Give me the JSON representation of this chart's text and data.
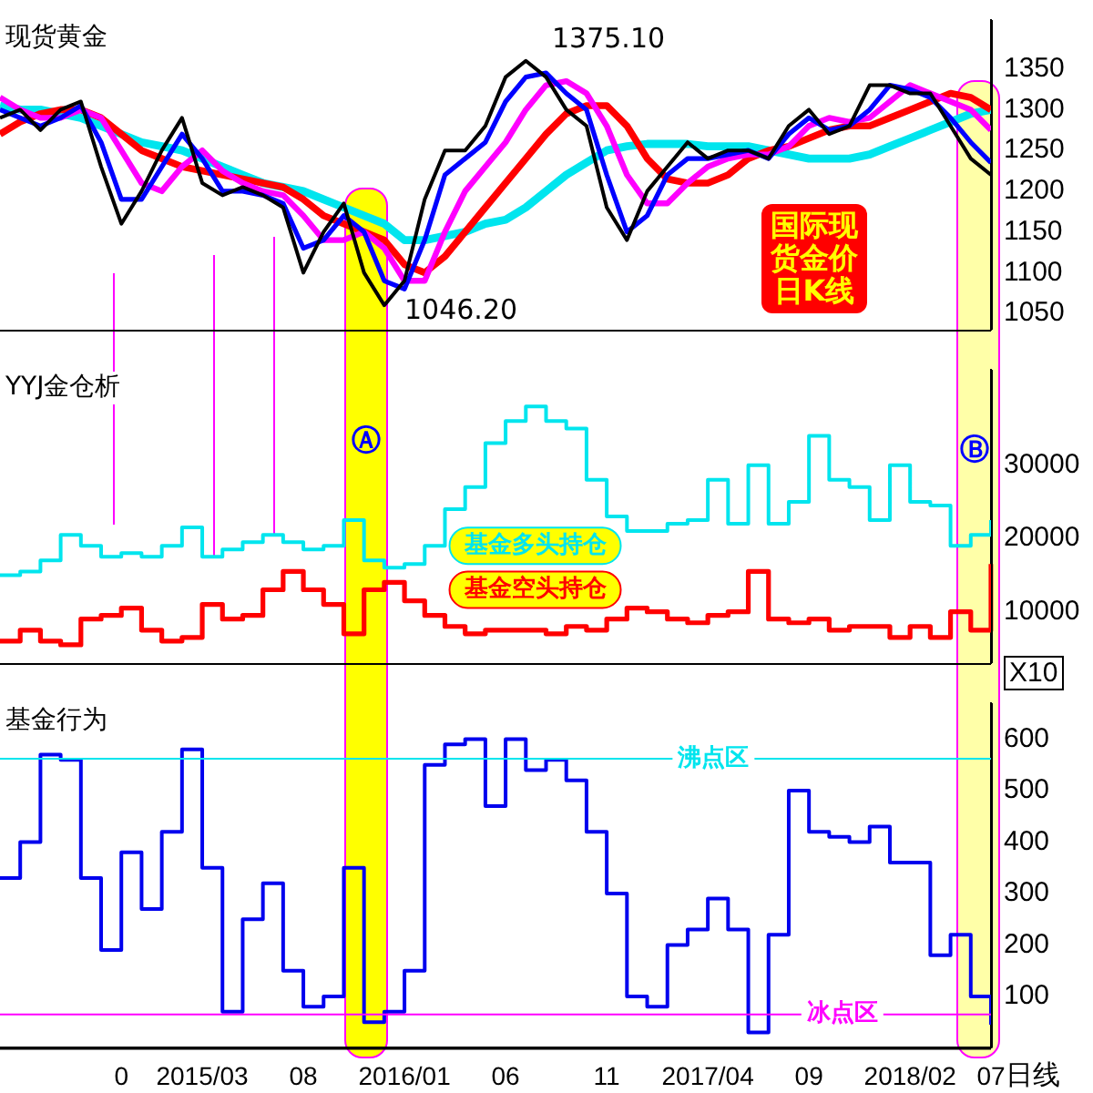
{
  "chart_data": [
    {
      "type": "line",
      "title": "现货黄金",
      "categories": [
        null,
        null,
        null,
        null,
        null,
        null,
        null,
        null,
        null,
        null,
        null,
        null,
        null,
        null,
        null,
        null,
        null,
        null,
        null,
        null,
        null,
        null,
        null,
        null,
        null,
        null,
        null,
        null,
        null,
        null,
        null,
        null,
        null,
        null,
        null,
        null,
        null,
        null,
        null,
        null,
        null,
        null,
        null,
        null,
        null,
        null,
        null,
        null,
        null,
        null
      ],
      "series": [
        {
          "color": "#000000",
          "values": [
            1290,
            1300,
            1275,
            1300,
            1310,
            1230,
            1160,
            1200,
            1250,
            1290,
            1210,
            1195,
            1205,
            1195,
            1180,
            1100,
            1150,
            1185,
            1100,
            1060,
            1090,
            1190,
            1250,
            1250,
            1280,
            1340,
            1360,
            1340,
            1300,
            1280,
            1180,
            1140,
            1200,
            1230,
            1260,
            1240,
            1250,
            1250,
            1240,
            1280,
            1300,
            1270,
            1280,
            1330,
            1330,
            1320,
            1320,
            1280,
            1240,
            1220
          ]
        },
        {
          "color": "#0000ff",
          "values": [
            1300,
            1290,
            1280,
            1290,
            1305,
            1260,
            1190,
            1190,
            1230,
            1270,
            1240,
            1200,
            1200,
            1195,
            1185,
            1130,
            1140,
            1170,
            1150,
            1090,
            1080,
            1140,
            1220,
            1240,
            1260,
            1310,
            1340,
            1345,
            1320,
            1300,
            1220,
            1150,
            1170,
            1220,
            1240,
            1240,
            1245,
            1250,
            1240,
            1270,
            1290,
            1275,
            1280,
            1300,
            1330,
            1325,
            1315,
            1290,
            1260,
            1235
          ]
        },
        {
          "color": "#ff00ff",
          "values": [
            1315,
            1300,
            1290,
            1290,
            1300,
            1290,
            1250,
            1210,
            1200,
            1230,
            1250,
            1225,
            1210,
            1200,
            1195,
            1170,
            1140,
            1140,
            1150,
            1130,
            1090,
            1090,
            1150,
            1200,
            1230,
            1260,
            1300,
            1330,
            1335,
            1320,
            1280,
            1220,
            1185,
            1185,
            1210,
            1230,
            1240,
            1245,
            1245,
            1255,
            1280,
            1290,
            1285,
            1290,
            1310,
            1330,
            1320,
            1310,
            1300,
            1275
          ]
        },
        {
          "color": "#ff0000",
          "values": [
            1270,
            1285,
            1295,
            1300,
            1300,
            1290,
            1270,
            1250,
            1240,
            1230,
            1225,
            1220,
            1215,
            1210,
            1205,
            1190,
            1170,
            1160,
            1150,
            1140,
            1110,
            1100,
            1120,
            1150,
            1180,
            1210,
            1240,
            1270,
            1295,
            1305,
            1305,
            1280,
            1240,
            1215,
            1210,
            1210,
            1220,
            1240,
            1250,
            1255,
            1265,
            1275,
            1280,
            1280,
            1290,
            1300,
            1310,
            1320,
            1315,
            1300
          ]
        },
        {
          "color": "#00e5ee",
          "values": [
            1305,
            1300,
            1300,
            1295,
            1290,
            1280,
            1270,
            1260,
            1255,
            1250,
            1240,
            1230,
            1220,
            1210,
            1205,
            1200,
            1190,
            1180,
            1170,
            1160,
            1140,
            1140,
            1145,
            1150,
            1160,
            1165,
            1180,
            1200,
            1220,
            1235,
            1250,
            1255,
            1258,
            1258,
            1258,
            1255,
            1255,
            1255,
            1250,
            1245,
            1240,
            1240,
            1240,
            1245,
            1255,
            1265,
            1275,
            1285,
            1295,
            1300
          ]
        }
      ],
      "ylim": [
        1030,
        1410
      ],
      "yticks": [
        1050,
        1100,
        1150,
        1200,
        1250,
        1300,
        1350
      ],
      "tick_labels": "y",
      "annotations": [
        "1375.10",
        "1046.20",
        "国际现货金价日K线"
      ]
    },
    {
      "type": "step",
      "title": "YYJ金仓析",
      "categories": [
        null,
        null,
        null,
        null,
        null,
        null,
        null,
        null,
        null,
        null,
        null,
        null,
        null,
        null,
        null,
        null,
        null,
        null,
        null,
        null,
        null,
        null,
        null,
        null,
        null,
        null,
        null,
        null,
        null,
        null,
        null,
        null,
        null,
        null,
        null,
        null,
        null,
        null,
        null,
        null,
        null,
        null,
        null,
        null,
        null,
        null,
        null,
        null,
        null,
        null
      ],
      "series": [
        {
          "name": "基金多头持仓",
          "color": "#00e5ee",
          "values": [
            15000,
            15500,
            17000,
            20500,
            19000,
            17500,
            18000,
            17500,
            19000,
            21500,
            17500,
            18500,
            19500,
            20500,
            19500,
            18500,
            19000,
            22500,
            17000,
            16000,
            16500,
            19000,
            24000,
            27000,
            33000,
            36000,
            38000,
            36000,
            35000,
            28000,
            23000,
            21000,
            21000,
            22000,
            22500,
            28000,
            22000,
            30000,
            22000,
            25000,
            34000,
            28000,
            27000,
            22500,
            30000,
            25000,
            24500,
            19000,
            20500,
            22500
          ]
        },
        {
          "name": "基金空头持仓",
          "color": "#ff0000",
          "values": [
            6000,
            7500,
            6000,
            5500,
            9000,
            9500,
            10500,
            7500,
            6000,
            6500,
            11000,
            9000,
            9500,
            13000,
            15500,
            13000,
            11000,
            7000,
            13000,
            14000,
            11500,
            9500,
            8000,
            7000,
            7500,
            7500,
            7500,
            7000,
            8000,
            7500,
            9000,
            10500,
            10000,
            9000,
            8500,
            9500,
            10000,
            15500,
            9000,
            8500,
            9000,
            7500,
            8000,
            8000,
            6500,
            8000,
            6500,
            10000,
            7500,
            16500
          ]
        }
      ],
      "ylim": [
        3000,
        43000
      ],
      "yticks": [
        10000,
        20000,
        30000
      ],
      "tick_labels": "y",
      "annotations": [
        "Ⓐ",
        "Ⓑ",
        "X10"
      ]
    },
    {
      "type": "step",
      "title": "基金行为",
      "categories": [
        null,
        null,
        null,
        null,
        null,
        null,
        "0",
        null,
        null,
        null,
        "2015/03",
        null,
        null,
        null,
        null,
        "08",
        null,
        null,
        null,
        null,
        "2016/01",
        null,
        null,
        null,
        null,
        "06",
        null,
        null,
        null,
        null,
        "11",
        null,
        null,
        null,
        null,
        "2017/04",
        null,
        null,
        null,
        null,
        "09",
        null,
        null,
        null,
        null,
        "2018/02",
        null,
        null,
        null,
        "07"
      ],
      "series": [
        {
          "color": "#0000ee",
          "values": [
            330,
            400,
            570,
            560,
            330,
            190,
            380,
            270,
            420,
            580,
            350,
            70,
            250,
            320,
            150,
            80,
            100,
            350,
            50,
            70,
            150,
            550,
            590,
            600,
            470,
            600,
            540,
            560,
            520,
            420,
            300,
            100,
            80,
            200,
            230,
            290,
            230,
            30,
            220,
            500,
            420,
            410,
            400,
            430,
            360,
            360,
            180,
            220,
            100,
            45
          ]
        }
      ],
      "ylim": [
        0,
        670
      ],
      "yticks": [
        100,
        200,
        300,
        400,
        500,
        600
      ],
      "ref_lines": [
        {
          "axis": "y",
          "value": 562,
          "label": "沸点区",
          "color": "#00e5ee"
        },
        {
          "axis": "y",
          "value": 65,
          "label": "冰点区",
          "color": "#ff00ff"
        }
      ],
      "annotations": [
        "日线"
      ]
    }
  ]
}
